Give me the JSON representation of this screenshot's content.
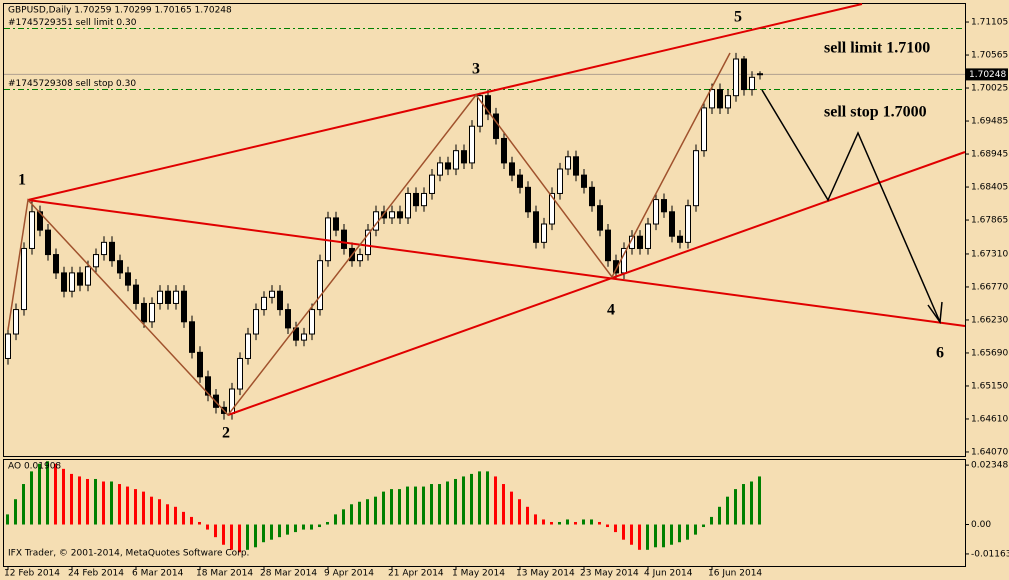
{
  "chart_data": [
    {
      "type": "candlestick",
      "title": "GBPUSD,Daily  1.70259 1.70299 1.70165 1.70248",
      "open": [
        1.656,
        1.66,
        1.664,
        1.674,
        1.68,
        1.677,
        1.673,
        1.67,
        1.667,
        1.67,
        1.668,
        1.671,
        1.673,
        1.675,
        1.672,
        1.67,
        1.668,
        1.665,
        1.662,
        1.665,
        1.667,
        1.665,
        1.667,
        1.662,
        1.657,
        1.653,
        1.65,
        1.648,
        1.647,
        1.651,
        1.656,
        1.66,
        1.664,
        1.666,
        1.667,
        1.664,
        1.661,
        1.659,
        1.66,
        1.664,
        1.672,
        1.679,
        1.677,
        1.674,
        1.672,
        1.673,
        1.677,
        1.68,
        1.679,
        1.68,
        1.679,
        1.683,
        1.681,
        1.683,
        1.686,
        1.688,
        1.687,
        1.69,
        1.688,
        1.694,
        1.699,
        1.696,
        1.692,
        1.688,
        1.686,
        1.684,
        1.68,
        1.675,
        1.678,
        1.683,
        1.687,
        1.689,
        1.686,
        1.684,
        1.681,
        1.677,
        1.672,
        1.67,
        1.674,
        1.676,
        1.674,
        1.678,
        1.682,
        1.68,
        1.676,
        1.675,
        1.681,
        1.69,
        1.697,
        1.7,
        1.697,
        1.699,
        1.705,
        1.7,
        1.70259
      ],
      "high": [
        1.661,
        1.665,
        1.675,
        1.6818,
        1.681,
        1.678,
        1.674,
        1.671,
        1.671,
        1.671,
        1.672,
        1.674,
        1.676,
        1.676,
        1.673,
        1.671,
        1.669,
        1.666,
        1.666,
        1.668,
        1.668,
        1.668,
        1.668,
        1.663,
        1.658,
        1.654,
        1.651,
        1.649,
        1.652,
        1.657,
        1.661,
        1.665,
        1.667,
        1.668,
        1.668,
        1.665,
        1.662,
        1.661,
        1.665,
        1.673,
        1.68,
        1.68,
        1.678,
        1.675,
        1.674,
        1.678,
        1.681,
        1.681,
        1.681,
        1.681,
        1.684,
        1.684,
        1.684,
        1.687,
        1.689,
        1.689,
        1.691,
        1.691,
        1.695,
        1.6995,
        1.7,
        1.697,
        1.693,
        1.689,
        1.687,
        1.685,
        1.681,
        1.679,
        1.684,
        1.688,
        1.69,
        1.69,
        1.687,
        1.685,
        1.682,
        1.678,
        1.673,
        1.675,
        1.677,
        1.677,
        1.679,
        1.683,
        1.683,
        1.681,
        1.677,
        1.682,
        1.691,
        1.698,
        1.701,
        1.701,
        1.7,
        1.706,
        1.7055,
        1.703,
        1.70299
      ],
      "low": [
        1.655,
        1.659,
        1.663,
        1.673,
        1.676,
        1.672,
        1.669,
        1.666,
        1.666,
        1.667,
        1.667,
        1.67,
        1.672,
        1.671,
        1.669,
        1.667,
        1.664,
        1.661,
        1.661,
        1.664,
        1.664,
        1.664,
        1.661,
        1.656,
        1.652,
        1.649,
        1.647,
        1.646,
        1.646,
        1.65,
        1.655,
        1.659,
        1.663,
        1.665,
        1.663,
        1.66,
        1.658,
        1.658,
        1.659,
        1.663,
        1.671,
        1.676,
        1.673,
        1.671,
        1.671,
        1.672,
        1.676,
        1.678,
        1.678,
        1.678,
        1.678,
        1.68,
        1.68,
        1.682,
        1.685,
        1.686,
        1.686,
        1.687,
        1.687,
        1.693,
        1.695,
        1.691,
        1.687,
        1.685,
        1.683,
        1.679,
        1.674,
        1.674,
        1.677,
        1.682,
        1.686,
        1.685,
        1.683,
        1.68,
        1.676,
        1.671,
        1.669,
        1.669,
        1.673,
        1.673,
        1.673,
        1.677,
        1.679,
        1.675,
        1.674,
        1.674,
        1.68,
        1.689,
        1.696,
        1.696,
        1.696,
        1.698,
        1.699,
        1.699,
        1.70165
      ],
      "close": [
        1.66,
        1.664,
        1.674,
        1.68,
        1.677,
        1.673,
        1.67,
        1.667,
        1.67,
        1.668,
        1.671,
        1.673,
        1.675,
        1.672,
        1.67,
        1.668,
        1.665,
        1.662,
        1.665,
        1.667,
        1.665,
        1.667,
        1.662,
        1.657,
        1.653,
        1.65,
        1.648,
        1.647,
        1.651,
        1.656,
        1.66,
        1.664,
        1.666,
        1.667,
        1.664,
        1.661,
        1.659,
        1.66,
        1.664,
        1.672,
        1.679,
        1.677,
        1.674,
        1.672,
        1.673,
        1.677,
        1.68,
        1.679,
        1.68,
        1.679,
        1.683,
        1.681,
        1.683,
        1.686,
        1.688,
        1.687,
        1.69,
        1.688,
        1.694,
        1.699,
        1.696,
        1.692,
        1.688,
        1.686,
        1.684,
        1.68,
        1.675,
        1.678,
        1.683,
        1.687,
        1.689,
        1.686,
        1.684,
        1.681,
        1.677,
        1.672,
        1.67,
        1.674,
        1.676,
        1.674,
        1.678,
        1.682,
        1.68,
        1.676,
        1.675,
        1.681,
        1.69,
        1.697,
        1.7,
        1.697,
        1.699,
        1.705,
        1.7,
        1.702,
        1.70248
      ],
      "bull_color": "#ffffff",
      "bear_color": "#000000",
      "ylim": [
        1.64004,
        1.714
      ],
      "yticks": [
        1.71105,
        1.70565,
        1.70025,
        1.69485,
        1.68945,
        1.68405,
        1.67865,
        {
          "value": 1.6731,
          "label": "1.67310"
        },
        {
          "value": 1.6677,
          "label": "1.66770"
        },
        {
          "value": 1.6623,
          "label": "1.66230"
        },
        {
          "value": 1.6569,
          "label": "1.65690"
        },
        {
          "value": 1.6515,
          "label": "1.65150"
        },
        {
          "value": 1.6461,
          "label": "1.64610"
        },
        {
          "value": 1.6407,
          "label": "1.64070"
        }
      ],
      "xticks": [
        {
          "value": 0,
          "label": "12 Feb 2014"
        },
        {
          "value": 8,
          "label": "24 Feb 2014"
        },
        {
          "value": 16,
          "label": "6 Mar 2014"
        },
        {
          "value": 24,
          "label": "18 Mar 2014"
        },
        {
          "value": 32,
          "label": "28 Mar 2014"
        },
        {
          "value": 40,
          "label": "9 Apr 2014"
        },
        {
          "value": 48,
          "label": "21 Apr 2014"
        },
        {
          "value": 56,
          "label": "1 May 2014"
        },
        {
          "value": 64,
          "label": "13 May 2014"
        },
        {
          "value": 72,
          "label": "23 May 2014"
        },
        {
          "value": 80,
          "label": "4 Jun 2014"
        },
        {
          "value": 88,
          "label": "16 Jun 2014"
        }
      ],
      "current_price": 1.70248,
      "orders": [
        {
          "label": "#1745729351 sell limit 0.30",
          "price": 1.71,
          "color": "#008000"
        },
        {
          "label": "#1745729308 sell stop 0.30",
          "price": 1.7,
          "color": "#008000"
        }
      ],
      "annotations": [
        "1",
        "2",
        "3",
        "4",
        "5",
        "6",
        "sell limit 1.7100",
        "sell stop 1.7000"
      ]
    },
    {
      "type": "bar",
      "title": "AO 0.01908",
      "values": [
        0.004,
        0.01,
        0.016,
        0.021,
        0.024,
        0.025,
        0.024,
        0.022,
        0.02,
        0.019,
        0.018,
        0.018,
        0.017,
        0.017,
        0.016,
        0.015,
        0.014,
        0.013,
        0.011,
        0.01,
        0.008,
        0.007,
        0.005,
        0.003,
        0.001,
        -0.002,
        -0.005,
        -0.008,
        -0.01,
        -0.011,
        -0.01,
        -0.009,
        -0.007,
        -0.006,
        -0.005,
        -0.004,
        -0.003,
        -0.002,
        -0.002,
        -0.001,
        0.001,
        0.004,
        0.006,
        0.008,
        0.009,
        0.01,
        0.011,
        0.013,
        0.014,
        0.014,
        0.015,
        0.015,
        0.015,
        0.016,
        0.016,
        0.017,
        0.018,
        0.019,
        0.02,
        0.021,
        0.021,
        0.019,
        0.016,
        0.013,
        0.01,
        0.007,
        0.004,
        0.002,
        0.001,
        0.001,
        0.002,
        0.001,
        0.002,
        0.002,
        0.001,
        -0.001,
        -0.003,
        -0.006,
        -0.008,
        -0.01,
        -0.01,
        -0.009,
        -0.009,
        -0.008,
        -0.007,
        -0.006,
        -0.004,
        -0.001,
        0.003,
        0.007,
        0.011,
        0.014,
        0.016,
        0.017,
        0.019
      ],
      "up_color": "#008000",
      "down_color": "#ff0000",
      "ylim": [
        -0.0164,
        0.0255
      ],
      "yticks": [
        0.02348,
        {
          "value": 0,
          "label": "0.00"
        },
        -0.01163
      ],
      "footer": "IFX Trader, © 2001-2014, MetaQuotes Software Corp."
    }
  ]
}
